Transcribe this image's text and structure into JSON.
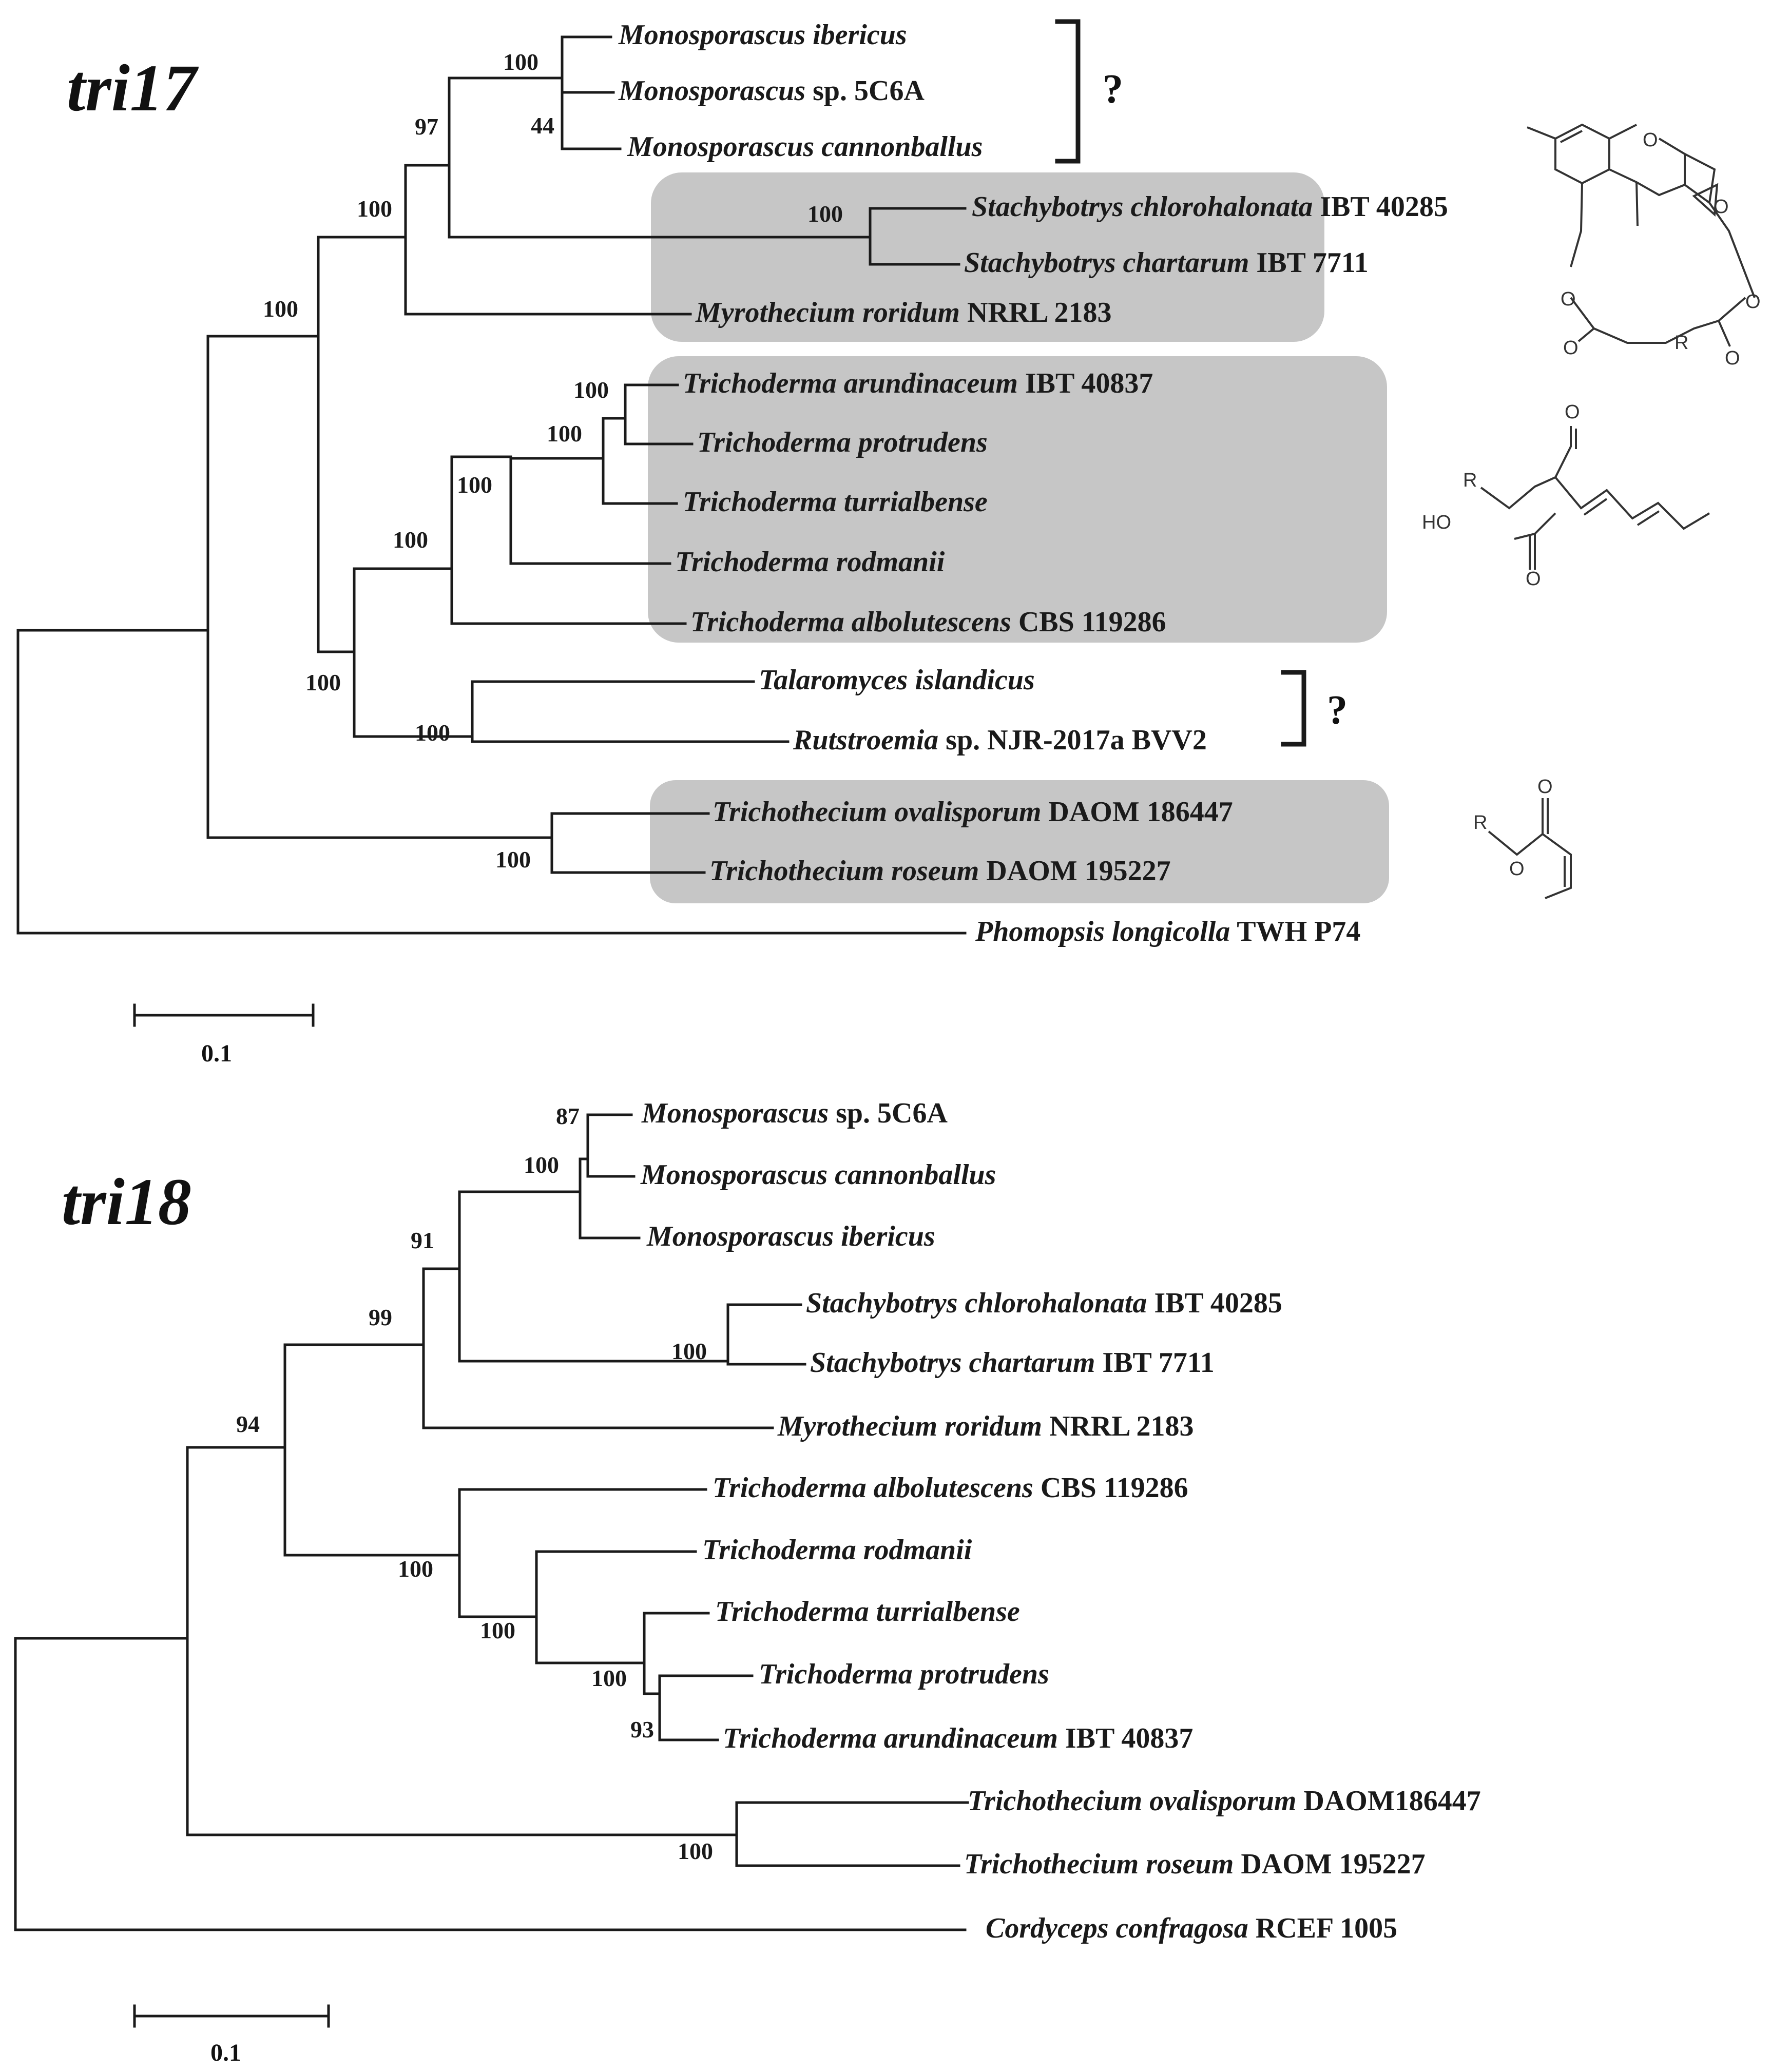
{
  "figure": {
    "tri17": {
      "title": "tri17",
      "scale_label": "0.1",
      "question_mark_1": "?",
      "question_mark_2": "?",
      "taxa": [
        {
          "genus": "Monosporascus ibericus",
          "rest": ""
        },
        {
          "genus": "Monosporascus",
          "rest": " sp. 5C6A"
        },
        {
          "genus": "Monosporascus cannonballus",
          "rest": ""
        },
        {
          "genus": "Stachybotrys chlorohalonata",
          "rest": " IBT 40285"
        },
        {
          "genus": "Stachybotrys chartarum",
          "rest": " IBT 7711"
        },
        {
          "genus": "Myrothecium roridum",
          "rest": " NRRL 2183"
        },
        {
          "genus": "Trichoderma arundinaceum",
          "rest": " IBT 40837"
        },
        {
          "genus": "Trichoderma protrudens",
          "rest": ""
        },
        {
          "genus": "Trichoderma turrialbense",
          "rest": ""
        },
        {
          "genus": "Trichoderma rodmanii",
          "rest": ""
        },
        {
          "genus": "Trichoderma albolutescens",
          "rest": " CBS 119286"
        },
        {
          "genus": "Talaromyces islandicus",
          "rest": ""
        },
        {
          "genus": "Rutstroemia",
          "rest": " sp. NJR-2017a BVV2"
        },
        {
          "genus": "Trichothecium ovalisporum",
          "rest": " DAOM 186447"
        },
        {
          "genus": "Trichothecium roseum",
          "rest": " DAOM 195227"
        },
        {
          "genus": "Phomopsis longicolla",
          "rest": " TWH P74"
        }
      ],
      "bootstrap": [
        "100",
        "44",
        "97",
        "100",
        "100",
        "100",
        "100",
        "100",
        "100",
        "100",
        "100",
        "100",
        "100"
      ]
    },
    "tri18": {
      "title": "tri18",
      "scale_label": "0.1",
      "taxa": [
        {
          "genus": "Monosporascus",
          "rest": " sp. 5C6A"
        },
        {
          "genus": "Monosporascus cannonballus",
          "rest": ""
        },
        {
          "genus": "Monosporascus ibericus",
          "rest": ""
        },
        {
          "genus": "Stachybotrys chlorohalonata",
          "rest": " IBT 40285"
        },
        {
          "genus": "Stachybotrys chartarum",
          "rest": " IBT 7711"
        },
        {
          "genus": "Myrothecium roridum",
          "rest": " NRRL 2183"
        },
        {
          "genus": "Trichoderma albolutescens",
          "rest": " CBS 119286"
        },
        {
          "genus": "Trichoderma rodmanii",
          "rest": ""
        },
        {
          "genus": "Trichoderma turrialbense",
          "rest": ""
        },
        {
          "genus": "Trichoderma protrudens",
          "rest": ""
        },
        {
          "genus": "Trichoderma arundinaceum",
          "rest": " IBT 40837"
        },
        {
          "genus": "Trichothecium ovalisporum",
          "rest": " DAOM186447"
        },
        {
          "genus": "Trichothecium roseum",
          "rest": " DAOM 195227"
        },
        {
          "genus": "Cordyceps confragosa",
          "rest": " RCEF 1005"
        }
      ],
      "bootstrap": [
        "87",
        "100",
        "91",
        "100",
        "99",
        "94",
        "100",
        "100",
        "100",
        "93",
        "100"
      ]
    },
    "chemistry": {
      "atom_O": "O",
      "atom_R": "R",
      "atom_HO": "HO"
    }
  }
}
